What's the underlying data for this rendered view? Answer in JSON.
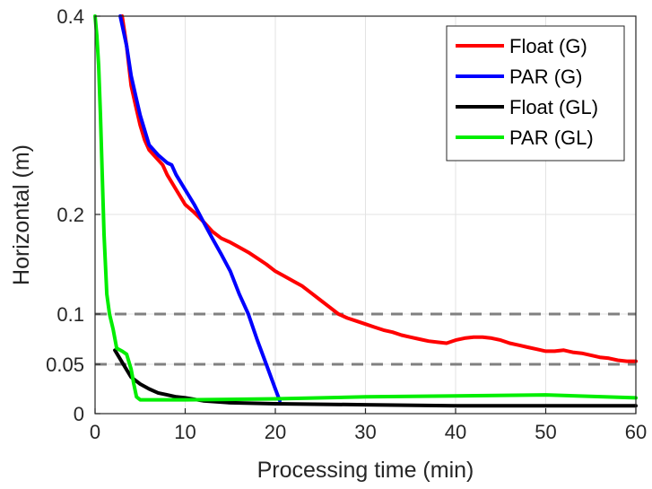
{
  "chart_data": {
    "type": "line",
    "title": "",
    "xlabel": "Processing time (min)",
    "ylabel": "Horizontal (m)",
    "xlim": [
      0,
      60
    ],
    "ylim": [
      0,
      0.4
    ],
    "x_ticks": [
      0,
      10,
      20,
      30,
      40,
      50,
      60
    ],
    "y_ticks": [
      0,
      0.05,
      0.1,
      0.2,
      0.4
    ],
    "y_tick_labels": [
      "0",
      "0.05",
      "0.1",
      "0.2",
      "0.4"
    ],
    "y_scale": "nonlinear (piecewise: 0–0.05–0.1–0.2–0.4 ticks)",
    "grid": true,
    "legend_position": "top-right",
    "reference_lines": [
      {
        "y": 0.1,
        "style": "dashed",
        "color": "#808080"
      },
      {
        "y": 0.05,
        "style": "dashed",
        "color": "#808080"
      }
    ],
    "series": [
      {
        "name": "Float (G)",
        "color": "#ff0000",
        "points": [
          [
            3.0,
            0.4
          ],
          [
            3.5,
            0.37
          ],
          [
            4.0,
            0.33
          ],
          [
            4.5,
            0.31
          ],
          [
            5.0,
            0.29
          ],
          [
            5.5,
            0.275
          ],
          [
            6.0,
            0.265
          ],
          [
            7.0,
            0.255
          ],
          [
            7.5,
            0.25
          ],
          [
            8.0,
            0.24
          ],
          [
            9.0,
            0.225
          ],
          [
            10.0,
            0.21
          ],
          [
            11.0,
            0.202
          ],
          [
            12.0,
            0.193
          ],
          [
            13.0,
            0.183
          ],
          [
            14.0,
            0.176
          ],
          [
            15.0,
            0.172
          ],
          [
            16.0,
            0.167
          ],
          [
            17.0,
            0.162
          ],
          [
            18.0,
            0.156
          ],
          [
            19.0,
            0.15
          ],
          [
            20.0,
            0.143
          ],
          [
            21.0,
            0.138
          ],
          [
            22.0,
            0.133
          ],
          [
            23.0,
            0.128
          ],
          [
            24.0,
            0.121
          ],
          [
            25.0,
            0.114
          ],
          [
            26.0,
            0.107
          ],
          [
            27.0,
            0.1
          ],
          [
            28.0,
            0.096
          ],
          [
            29.0,
            0.093
          ],
          [
            30.0,
            0.09
          ],
          [
            31.0,
            0.087
          ],
          [
            32.0,
            0.084
          ],
          [
            33.0,
            0.082
          ],
          [
            34.0,
            0.079
          ],
          [
            35.0,
            0.077
          ],
          [
            36.0,
            0.075
          ],
          [
            37.0,
            0.073
          ],
          [
            38.0,
            0.072
          ],
          [
            39.0,
            0.071
          ],
          [
            40.0,
            0.074
          ],
          [
            41.0,
            0.076
          ],
          [
            42.0,
            0.077
          ],
          [
            43.0,
            0.077
          ],
          [
            44.0,
            0.076
          ],
          [
            45.0,
            0.074
          ],
          [
            46.0,
            0.071
          ],
          [
            47.0,
            0.069
          ],
          [
            48.0,
            0.067
          ],
          [
            49.0,
            0.065
          ],
          [
            50.0,
            0.063
          ],
          [
            51.0,
            0.063
          ],
          [
            52.0,
            0.064
          ],
          [
            53.0,
            0.062
          ],
          [
            54.0,
            0.061
          ],
          [
            55.0,
            0.059
          ],
          [
            56.0,
            0.057
          ],
          [
            57.0,
            0.056
          ],
          [
            58.0,
            0.054
          ],
          [
            59.0,
            0.053
          ],
          [
            60.0,
            0.053
          ]
        ]
      },
      {
        "name": "PAR (G)",
        "color": "#0000ff",
        "points": [
          [
            2.8,
            0.4
          ],
          [
            3.5,
            0.37
          ],
          [
            4.0,
            0.34
          ],
          [
            4.5,
            0.32
          ],
          [
            5.0,
            0.3
          ],
          [
            5.5,
            0.285
          ],
          [
            6.0,
            0.27
          ],
          [
            7.0,
            0.26
          ],
          [
            8.0,
            0.252
          ],
          [
            8.5,
            0.25
          ],
          [
            9.0,
            0.24
          ],
          [
            10.0,
            0.225
          ],
          [
            11.0,
            0.21
          ],
          [
            12.0,
            0.193
          ],
          [
            13.0,
            0.176
          ],
          [
            14.0,
            0.16
          ],
          [
            15.0,
            0.143
          ],
          [
            16.0,
            0.12
          ],
          [
            17.0,
            0.1
          ],
          [
            18.0,
            0.074
          ],
          [
            19.0,
            0.05
          ],
          [
            20.0,
            0.025
          ],
          [
            20.5,
            0.013
          ]
        ]
      },
      {
        "name": "Float (GL)",
        "color": "#000000",
        "points": [
          [
            2.2,
            0.064
          ],
          [
            3.0,
            0.052
          ],
          [
            4.0,
            0.037
          ],
          [
            5.0,
            0.03
          ],
          [
            6.0,
            0.025
          ],
          [
            7.0,
            0.021
          ],
          [
            8.0,
            0.019
          ],
          [
            9.0,
            0.017
          ],
          [
            10.0,
            0.016
          ],
          [
            12.0,
            0.013
          ],
          [
            15.0,
            0.011
          ],
          [
            20.0,
            0.01
          ],
          [
            30.0,
            0.009
          ],
          [
            40.0,
            0.008
          ],
          [
            50.0,
            0.008
          ],
          [
            60.0,
            0.008
          ]
        ]
      },
      {
        "name": "PAR (GL)",
        "color": "#00ee00",
        "points": [
          [
            0.0,
            0.4
          ],
          [
            0.2,
            0.38
          ],
          [
            0.4,
            0.35
          ],
          [
            0.6,
            0.3
          ],
          [
            0.8,
            0.24
          ],
          [
            1.0,
            0.18
          ],
          [
            1.3,
            0.12
          ],
          [
            1.6,
            0.1
          ],
          [
            2.0,
            0.085
          ],
          [
            2.4,
            0.066
          ],
          [
            3.0,
            0.063
          ],
          [
            3.5,
            0.06
          ],
          [
            4.0,
            0.045
          ],
          [
            4.3,
            0.03
          ],
          [
            4.6,
            0.017
          ],
          [
            5.0,
            0.014
          ],
          [
            10.0,
            0.014
          ],
          [
            20.0,
            0.015
          ],
          [
            30.0,
            0.017
          ],
          [
            40.0,
            0.018
          ],
          [
            50.0,
            0.019
          ],
          [
            60.0,
            0.016
          ]
        ]
      }
    ]
  }
}
